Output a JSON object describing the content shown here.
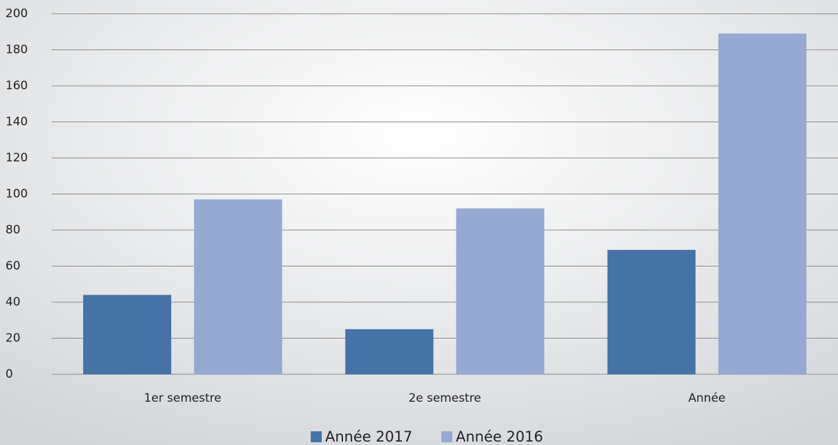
{
  "chart_data": {
    "type": "bar",
    "categories": [
      "1er semestre",
      "2e semestre",
      "Année"
    ],
    "series": [
      {
        "name": "Année 2017",
        "color": "#4572a7",
        "values": [
          44,
          25,
          69
        ]
      },
      {
        "name": "Année 2016",
        "color": "#95a9d3",
        "values": [
          97,
          92,
          189
        ]
      }
    ],
    "ylim": [
      0,
      200
    ],
    "yticks": [
      0,
      20,
      40,
      60,
      80,
      100,
      120,
      140,
      160,
      180,
      200
    ],
    "grid": true,
    "legend": "bottom"
  }
}
